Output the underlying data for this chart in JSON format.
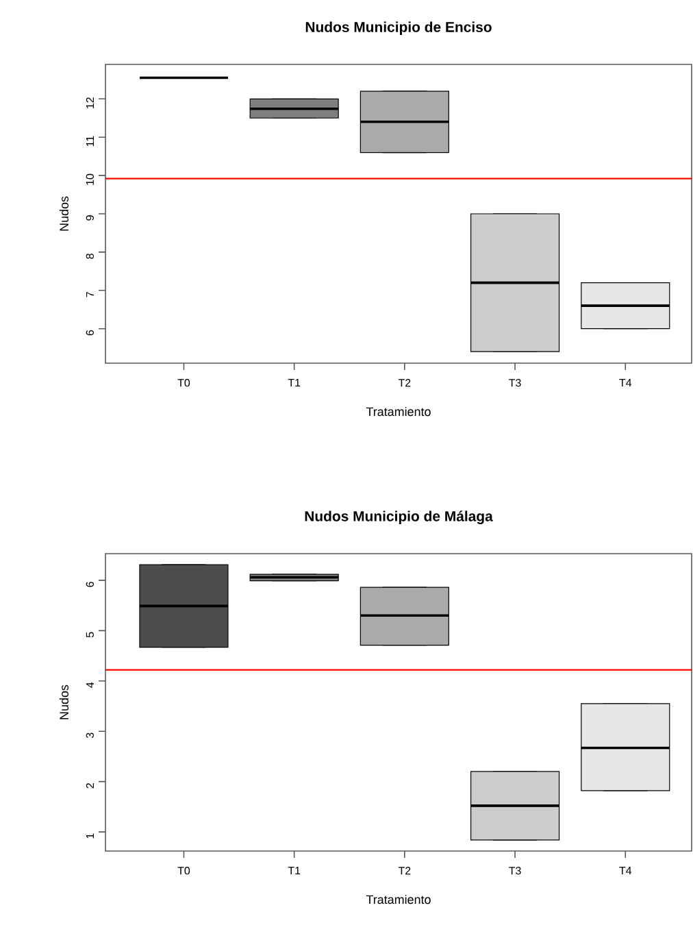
{
  "chart_data": [
    {
      "type": "box",
      "title": "Nudos Municipio de Enciso",
      "xlabel": "Tratamiento",
      "ylabel": "Nudos",
      "categories": [
        "T0",
        "T1",
        "T2",
        "T3",
        "T4"
      ],
      "boxes": [
        {
          "low": 12.55,
          "q1": 12.55,
          "median": 12.55,
          "q3": 12.55,
          "high": 12.55
        },
        {
          "low": 11.5,
          "q1": 11.5,
          "median": 11.74,
          "q3": 12.0,
          "high": 12.0
        },
        {
          "low": 10.6,
          "q1": 10.6,
          "median": 11.4,
          "q3": 12.2,
          "high": 12.2
        },
        {
          "low": 5.4,
          "q1": 5.4,
          "median": 7.2,
          "q3": 9.0,
          "high": 9.0
        },
        {
          "low": 6.0,
          "q1": 6.0,
          "median": 6.6,
          "q3": 7.2,
          "high": 7.2
        }
      ],
      "colors": [
        "#000000",
        "#7f7f7f",
        "#aaaaaa",
        "#cccccc",
        "#e6e6e6"
      ],
      "ylim": [
        5.1,
        12.9
      ],
      "yticks": [
        6,
        7,
        8,
        9,
        10,
        11,
        12
      ],
      "ref_lines": [
        {
          "axis": "y",
          "value": 9.92,
          "color": "#ff0000"
        }
      ]
    },
    {
      "type": "box",
      "title": "Nudos Municipio de Málaga",
      "xlabel": "Tratamiento",
      "ylabel": "Nudos",
      "categories": [
        "T0",
        "T1",
        "T2",
        "T3",
        "T4"
      ],
      "boxes": [
        {
          "low": 4.67,
          "q1": 4.67,
          "median": 5.49,
          "q3": 6.31,
          "high": 6.31
        },
        {
          "low": 5.99,
          "q1": 5.99,
          "median": 6.06,
          "q3": 6.12,
          "high": 6.12
        },
        {
          "low": 4.71,
          "q1": 4.71,
          "median": 5.3,
          "q3": 5.86,
          "high": 5.86
        },
        {
          "low": 0.84,
          "q1": 0.84,
          "median": 1.52,
          "q3": 2.2,
          "high": 2.2
        },
        {
          "low": 1.82,
          "q1": 1.82,
          "median": 2.67,
          "q3": 3.55,
          "high": 3.55
        }
      ],
      "colors": [
        "#4d4d4d",
        "#7f7f7f",
        "#aaaaaa",
        "#cccccc",
        "#e6e6e6"
      ],
      "ylim": [
        0.62,
        6.53
      ],
      "yticks": [
        1,
        2,
        3,
        4,
        5,
        6
      ],
      "ref_lines": [
        {
          "axis": "y",
          "value": 4.22,
          "color": "#ff0000"
        }
      ]
    }
  ]
}
